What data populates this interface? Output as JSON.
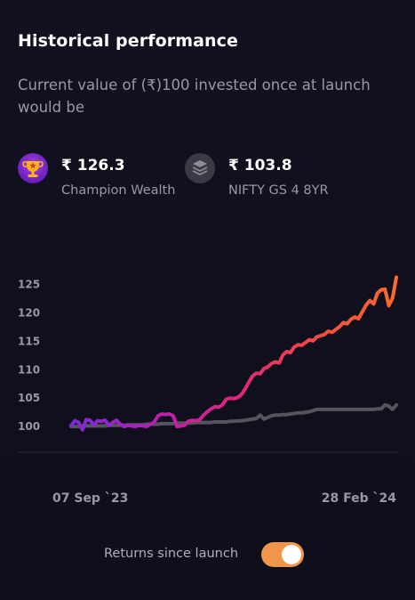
{
  "header": {
    "title": "Historical performance",
    "subtitle": "Current value of (₹)100 invested once at launch would be"
  },
  "funds": [
    {
      "value": "₹ 126.3",
      "name": "Champion Wealth",
      "icon": "trophy-icon",
      "color": "#ff6a2b"
    },
    {
      "value": "₹ 103.8",
      "name": "NIFTY GS 4 8YR",
      "icon": "layers-icon",
      "color": "#5a5a66"
    }
  ],
  "toggle": {
    "label": "Returns since launch",
    "on": true,
    "color": "#f0954a"
  },
  "chart_data": {
    "type": "line",
    "x_start_label": "07 Sep `23",
    "x_end_label": "28 Feb `24",
    "yticks": [
      100,
      105,
      110,
      115,
      120,
      125
    ],
    "ylim": [
      97.5,
      127
    ],
    "grid": false,
    "series": [
      {
        "name": "Champion Wealth",
        "gradient": [
          "#7a2bd6",
          "#b41fb5",
          "#e0247e",
          "#f04a45",
          "#ff6a2b"
        ],
        "values": [
          100.2,
          101.0,
          100.7,
          99.4,
          101.2,
          101.1,
          100.3,
          101.0,
          100.9,
          101.1,
          100.2,
          100.7,
          101.1,
          100.4,
          100.0,
          100.2,
          100.1,
          100.0,
          100.2,
          100.1,
          100.0,
          100.4,
          100.8,
          101.9,
          102.2,
          102.1,
          102.2,
          101.9,
          100.0,
          100.1,
          100.2,
          100.9,
          101.1,
          101.0,
          101.2,
          102.0,
          102.6,
          103.1,
          103.5,
          103.4,
          103.8,
          104.8,
          105.0,
          104.9,
          105.1,
          105.6,
          106.6,
          107.8,
          108.9,
          109.4,
          109.3,
          110.2,
          110.5,
          111.1,
          111.4,
          111.2,
          112.6,
          113.2,
          113.0,
          114.0,
          114.4,
          114.3,
          114.8,
          115.3,
          115.1,
          115.8,
          116.0,
          116.2,
          116.8,
          116.6,
          117.1,
          117.6,
          118.3,
          118.1,
          118.9,
          119.3,
          119.0,
          120.2,
          121.4,
          122.2,
          121.6,
          123.5,
          124.1,
          124.2,
          121.3,
          122.6,
          126.3
        ]
      },
      {
        "name": "NIFTY GS 4 8YR",
        "values": [
          100.0,
          100.0,
          100.0,
          100.1,
          100.1,
          100.1,
          100.1,
          100.1,
          100.1,
          100.1,
          100.2,
          100.2,
          100.2,
          100.2,
          100.2,
          100.3,
          100.3,
          100.3,
          100.3,
          100.3,
          100.4,
          100.4,
          100.4,
          100.4,
          100.5,
          100.5,
          100.5,
          100.5,
          100.6,
          100.6,
          100.6,
          100.6,
          100.6,
          100.7,
          100.7,
          100.7,
          100.7,
          100.7,
          100.8,
          100.8,
          100.8,
          100.8,
          100.9,
          100.9,
          101.0,
          101.0,
          101.1,
          101.2,
          101.3,
          101.4,
          102.0,
          101.3,
          101.6,
          101.9,
          102.0,
          102.0,
          102.1,
          102.1,
          102.2,
          102.3,
          102.4,
          102.4,
          102.5,
          102.6,
          102.8,
          103.0,
          103.0,
          103.0,
          103.0,
          103.0,
          103.0,
          103.0,
          103.0,
          103.0,
          103.0,
          103.0,
          103.0,
          103.0,
          103.0,
          103.0,
          103.0,
          103.1,
          103.1,
          103.8,
          103.6,
          103.0,
          103.8
        ]
      }
    ]
  }
}
